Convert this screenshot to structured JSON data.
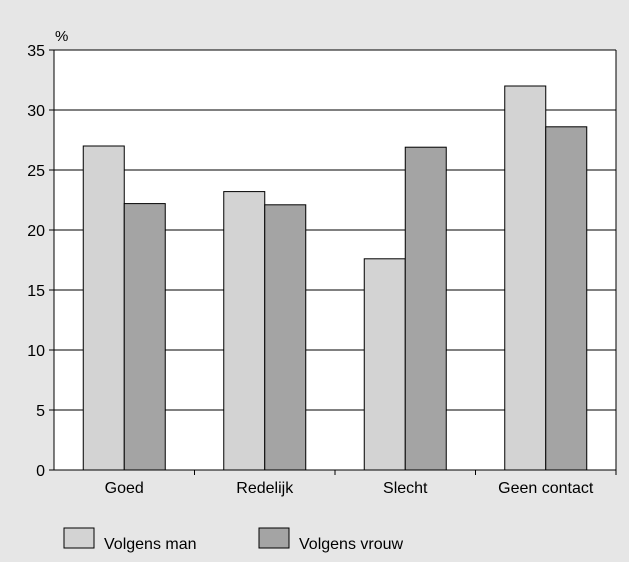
{
  "chart_data": {
    "type": "bar",
    "categories": [
      "Goed",
      "Redelijk",
      "Slecht",
      "Geen contact"
    ],
    "series": [
      {
        "name": "Volgens man",
        "values": [
          27.0,
          23.2,
          17.6,
          32.0
        ],
        "color": "#d3d3d3"
      },
      {
        "name": "Volgens vrouw",
        "values": [
          22.2,
          22.1,
          26.9,
          28.6
        ],
        "color": "#a4a4a4"
      }
    ],
    "ylabel": "%",
    "ylim": [
      0,
      35
    ],
    "yticks": [
      0,
      5,
      10,
      15,
      20,
      25,
      30,
      35
    ],
    "grid": true,
    "legend_position": "bottom-left",
    "colors": {
      "background": "#e6e6e6",
      "plot_background": "#ffffff",
      "axis": "#000000"
    }
  }
}
